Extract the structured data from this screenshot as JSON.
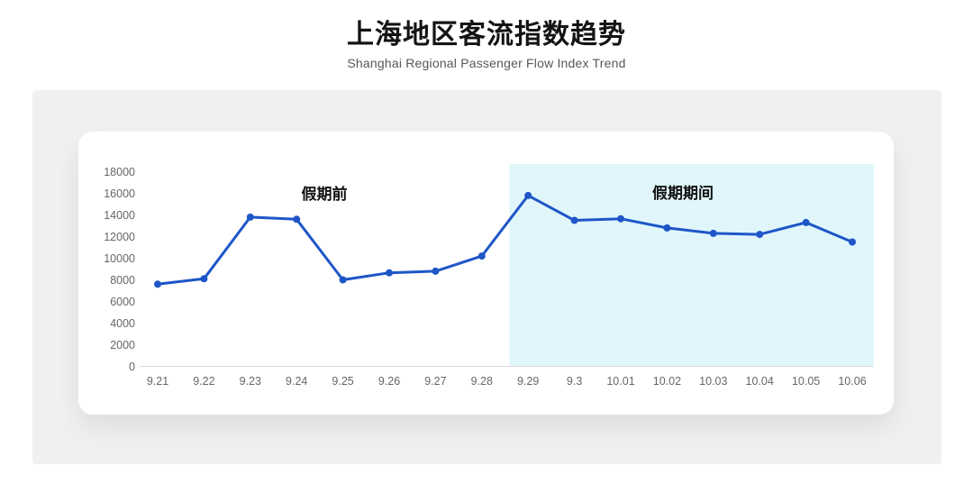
{
  "header": {
    "title": "上海地区客流指数趋势",
    "subtitle": "Shanghai Regional Passenger Flow Index Trend"
  },
  "chart_data": {
    "type": "line",
    "title": "上海地区客流指数趋势",
    "subtitle": "Shanghai Regional Passenger Flow Index Trend",
    "categories": [
      "9.21",
      "9.22",
      "9.23",
      "9.24",
      "9.25",
      "9.26",
      "9.27",
      "9.28",
      "9.29",
      "9.3",
      "10.01",
      "10.02",
      "10.03",
      "10.04",
      "10.05",
      "10.06"
    ],
    "values": [
      7600,
      8100,
      13800,
      13600,
      8000,
      8650,
      8800,
      10200,
      15800,
      13500,
      13650,
      12800,
      12300,
      12200,
      13300,
      11500
    ],
    "xlabel": "",
    "ylabel": "",
    "ylim": [
      0,
      18000
    ],
    "yticks": [
      0,
      2000,
      4000,
      6000,
      8000,
      10000,
      12000,
      14000,
      16000,
      18000
    ],
    "grid": false,
    "legend": false,
    "line_color": "#1e56c8",
    "marker": "circle",
    "annotations": [
      {
        "label": "假期前",
        "region": "pre-holiday"
      },
      {
        "label": "假期期间",
        "region": "holiday"
      }
    ],
    "highlight_region": {
      "start_category": "9.29",
      "end_category": "10.06",
      "color": "#e0f6fb",
      "label": "假期期间"
    }
  },
  "colors": {
    "page_background": "#ffffff",
    "panel_background": "#f0f0f0",
    "card_background": "#ffffff",
    "line": "#1e56c8",
    "highlight": "#e0f6fb",
    "axis_text": "#666666",
    "axis_line": "#dcdcdc",
    "title_text": "#141414",
    "subtitle_text": "#575757"
  }
}
